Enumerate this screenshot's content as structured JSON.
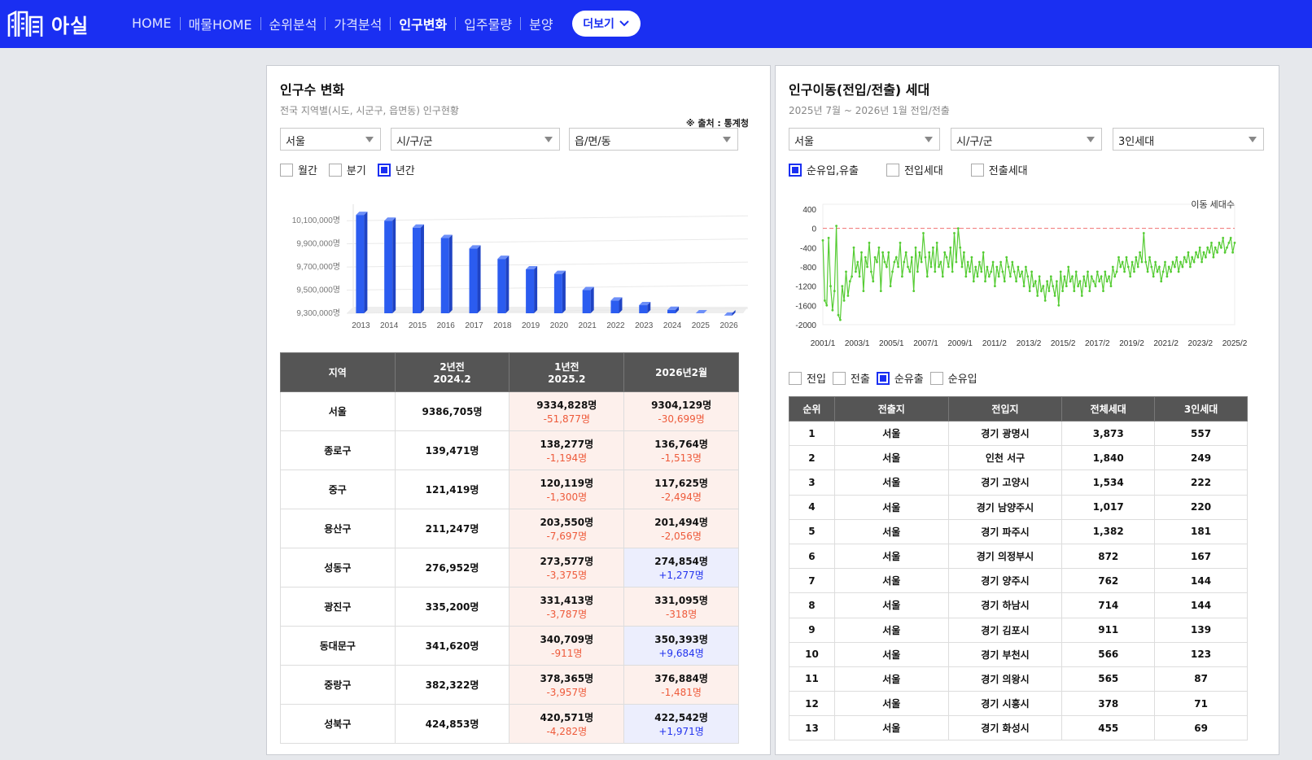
{
  "header": {
    "logo_text": "아실",
    "nav": [
      "HOME",
      "매물HOME",
      "순위분석",
      "가격분석",
      "인구변화",
      "입주물량",
      "분양"
    ],
    "active_nav": "인구변화",
    "more_label": "더보기"
  },
  "left": {
    "title": "인구수 변화",
    "subtitle": "전국 지역별(시도, 시군구, 읍면동) 인구현황",
    "source": "※ 출처 : 통계청",
    "selects": [
      "서울",
      "시/구/군",
      "읍/면/동"
    ],
    "checks": [
      {
        "label": "월간",
        "checked": false
      },
      {
        "label": "분기",
        "checked": false
      },
      {
        "label": "년간",
        "checked": true
      }
    ],
    "table_headers": [
      {
        "line1": "지역",
        "line2": ""
      },
      {
        "line1": "2년전",
        "line2": "2024.2"
      },
      {
        "line1": "1년전",
        "line2": "2025.2"
      },
      {
        "line1": "2026년2월",
        "line2": ""
      }
    ],
    "rows": [
      {
        "region": "서울",
        "y2": "9386,705명",
        "y1": "9334,828명",
        "y1d": "-51,877명",
        "now": "9304,129명",
        "nowd": "-30,699명"
      },
      {
        "region": "종로구",
        "y2": "139,471명",
        "y1": "138,277명",
        "y1d": "-1,194명",
        "now": "136,764명",
        "nowd": "-1,513명"
      },
      {
        "region": "중구",
        "y2": "121,419명",
        "y1": "120,119명",
        "y1d": "-1,300명",
        "now": "117,625명",
        "nowd": "-2,494명"
      },
      {
        "region": "용산구",
        "y2": "211,247명",
        "y1": "203,550명",
        "y1d": "-7,697명",
        "now": "201,494명",
        "nowd": "-2,056명"
      },
      {
        "region": "성동구",
        "y2": "276,952명",
        "y1": "273,577명",
        "y1d": "-3,375명",
        "now": "274,854명",
        "nowd": "+1,277명"
      },
      {
        "region": "광진구",
        "y2": "335,200명",
        "y1": "331,413명",
        "y1d": "-3,787명",
        "now": "331,095명",
        "nowd": "-318명"
      },
      {
        "region": "동대문구",
        "y2": "341,620명",
        "y1": "340,709명",
        "y1d": "-911명",
        "now": "350,393명",
        "nowd": "+9,684명"
      },
      {
        "region": "중랑구",
        "y2": "382,322명",
        "y1": "378,365명",
        "y1d": "-3,957명",
        "now": "376,884명",
        "nowd": "-1,481명"
      },
      {
        "region": "성북구",
        "y2": "424,853명",
        "y1": "420,571명",
        "y1d": "-4,282명",
        "now": "422,542명",
        "nowd": "+1,971명"
      }
    ]
  },
  "right": {
    "title": "인구이동(전입/전출) 세대",
    "subtitle": "2025년 7월 ~ 2026년 1월 전입/전출",
    "selects": [
      "서울",
      "시/구/군",
      "3인세대"
    ],
    "checks_top": [
      {
        "label": "순유입,유출",
        "checked": true
      },
      {
        "label": "전입세대",
        "checked": false
      },
      {
        "label": "전출세대",
        "checked": false
      }
    ],
    "checks_bottom": [
      {
        "label": "전입",
        "checked": false
      },
      {
        "label": "전출",
        "checked": false
      },
      {
        "label": "순유출",
        "checked": true
      },
      {
        "label": "순유입",
        "checked": false
      }
    ],
    "table_headers": [
      "순위",
      "전출지",
      "전입지",
      "전체세대",
      "3인세대"
    ],
    "rows": [
      [
        "1",
        "서울",
        "경기 광명시",
        "3,873",
        "557"
      ],
      [
        "2",
        "서울",
        "인천 서구",
        "1,840",
        "249"
      ],
      [
        "3",
        "서울",
        "경기 고양시",
        "1,534",
        "222"
      ],
      [
        "4",
        "서울",
        "경기 남양주시",
        "1,017",
        "220"
      ],
      [
        "5",
        "서울",
        "경기 파주시",
        "1,382",
        "181"
      ],
      [
        "6",
        "서울",
        "경기 의정부시",
        "872",
        "167"
      ],
      [
        "7",
        "서울",
        "경기 양주시",
        "762",
        "144"
      ],
      [
        "8",
        "서울",
        "경기 하남시",
        "714",
        "144"
      ],
      [
        "9",
        "서울",
        "경기 김포시",
        "911",
        "139"
      ],
      [
        "10",
        "서울",
        "경기 부천시",
        "566",
        "123"
      ],
      [
        "11",
        "서울",
        "경기 의왕시",
        "565",
        "87"
      ],
      [
        "12",
        "서울",
        "경기 시흥시",
        "378",
        "71"
      ],
      [
        "13",
        "서울",
        "경기 화성시",
        "455",
        "69"
      ]
    ]
  },
  "chart_data": [
    {
      "type": "bar",
      "categories": [
        "2013",
        "2014",
        "2015",
        "2016",
        "2017",
        "2018",
        "2019",
        "2020",
        "2021",
        "2022",
        "2023",
        "2024",
        "2025",
        "2026"
      ],
      "values": [
        10150000,
        10100000,
        10040000,
        9950000,
        9860000,
        9770000,
        9680000,
        9640000,
        9500000,
        9410000,
        9370000,
        9330000,
        9300000,
        9280000
      ],
      "ylim": [
        9300000,
        10200000
      ],
      "yticks": [
        "10,100,000명",
        "9,900,000명",
        "9,700,000명",
        "9,500,000명",
        "9,300,000명"
      ],
      "ytick_values": [
        10100000,
        9900000,
        9700000,
        9500000,
        9300000
      ],
      "color": "#2b5cf0"
    },
    {
      "type": "line",
      "title": "이동 세대수",
      "xticks": [
        "2001/1",
        "2003/1",
        "2005/1",
        "2007/1",
        "2009/1",
        "2011/2",
        "2013/2",
        "2015/2",
        "2017/2",
        "2019/2",
        "2021/2",
        "2023/2",
        "2025/2"
      ],
      "yticks": [
        "400",
        "0",
        "-400",
        "-800",
        "-1200",
        "-1600",
        "-2000"
      ],
      "ytick_values": [
        400,
        0,
        -400,
        -800,
        -1200,
        -1600,
        -2000
      ],
      "ylim": [
        -2000,
        500
      ],
      "reference_line": 0,
      "series": [
        {
          "color": "#55cc33",
          "values": [
            -250,
            -1500,
            -1600,
            -200,
            -1200,
            -1700,
            -1300,
            50,
            -1800,
            -1900,
            -1200,
            -1500,
            -900,
            -1400,
            -1100,
            -1000,
            -400,
            -900,
            -700,
            -1000,
            -500,
            -1300,
            -600,
            -800,
            -300,
            -900,
            -1100,
            -600,
            -700,
            -400,
            -1300,
            -500,
            -700,
            -800,
            -500,
            -1200,
            -900,
            -700,
            -600,
            -800,
            -300,
            -1000,
            -700,
            -500,
            -800,
            -900,
            -600,
            -1300,
            -400,
            -900,
            -500,
            -700,
            -100,
            -600,
            -1000,
            -500,
            -800,
            -400,
            -900,
            -300,
            -800,
            -700,
            -1000,
            -500,
            -600,
            -800,
            -400,
            -900,
            -100,
            -700,
            0,
            -400,
            -800,
            -500,
            -1000,
            -700,
            -900,
            -600,
            -1100,
            -800,
            -1000,
            -700,
            -900,
            -500,
            -1100,
            -800,
            -1000,
            -900,
            -700,
            -1200,
            -800,
            -1000,
            -700,
            -900,
            -1100,
            -600,
            -800,
            -1000,
            -700,
            -900,
            -1100,
            -800,
            -1000,
            -900,
            -1200,
            -800,
            -1000,
            -1300,
            -900,
            -1200,
            -1100,
            -1400,
            -1000,
            -1300,
            -1200,
            -1500,
            -1100,
            -1300,
            -1000,
            -1200,
            -1400,
            -1100,
            -1600,
            -900,
            -1300,
            -1000,
            -1200,
            -800,
            -1100,
            -1000,
            -1300,
            -900,
            -1200,
            -1100,
            -1400,
            -1000,
            -1200,
            -900,
            -1300,
            -1000,
            -1100,
            -1200,
            -900,
            -1100,
            -1000,
            -1300,
            -900,
            -1100,
            -1000,
            -1200,
            -800,
            -1000,
            -900,
            -600,
            -800,
            -700,
            -900,
            -600,
            -800,
            -1000,
            -700,
            -900,
            -600,
            -800,
            -500,
            -700,
            -100,
            -700,
            -900,
            -600,
            -800,
            -1000,
            -700,
            -900,
            -800,
            -1100,
            -900,
            -700,
            -1000,
            -800,
            -900,
            -700,
            -800,
            -600,
            -900,
            -700,
            -800,
            -600,
            -700,
            -500,
            -800,
            -600,
            -700,
            -500,
            -600,
            -400,
            -700,
            -500,
            -600,
            -400,
            -500,
            -300,
            -600,
            -400,
            -500,
            -300,
            -400,
            -200,
            -500,
            -400,
            -300,
            -200,
            -500,
            -300
          ]
        }
      ]
    }
  ]
}
